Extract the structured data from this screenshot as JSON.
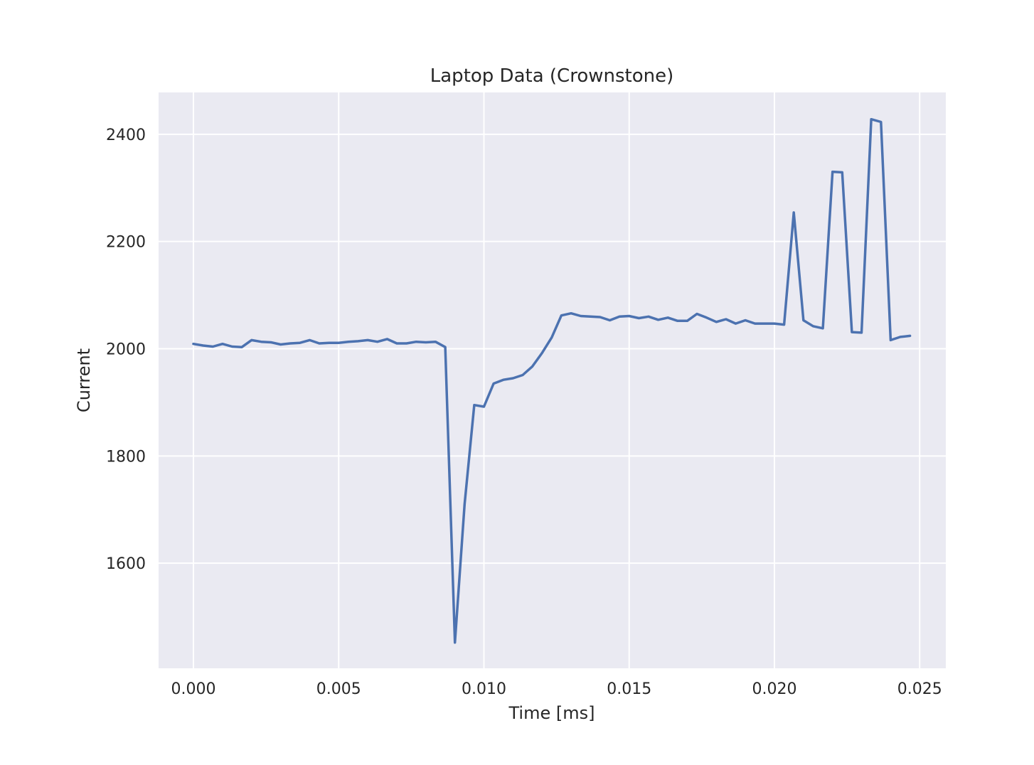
{
  "chart_data": {
    "type": "line",
    "title": "Laptop Data (Crownstone)",
    "xlabel": "Time [ms]",
    "ylabel": "Current",
    "xlim": [
      -0.0012,
      0.0259
    ],
    "ylim": [
      1404,
      2478
    ],
    "x_ticks": [
      {
        "value": 0.0,
        "label": "0.000"
      },
      {
        "value": 0.005,
        "label": "0.005"
      },
      {
        "value": 0.01,
        "label": "0.010"
      },
      {
        "value": 0.015,
        "label": "0.015"
      },
      {
        "value": 0.02,
        "label": "0.020"
      },
      {
        "value": 0.025,
        "label": "0.025"
      }
    ],
    "y_ticks": [
      {
        "value": 1600,
        "label": "1600"
      },
      {
        "value": 1800,
        "label": "1800"
      },
      {
        "value": 2000,
        "label": "2000"
      },
      {
        "value": 2200,
        "label": "2200"
      },
      {
        "value": 2400,
        "label": "2400"
      }
    ],
    "grid": true,
    "background_color": "#eaeaf2",
    "grid_color": "#ffffff",
    "series": [
      {
        "color": "#4c72b0",
        "x": [
          0.0,
          0.000333,
          0.000667,
          0.001,
          0.001333,
          0.001667,
          0.002,
          0.002333,
          0.002667,
          0.003,
          0.003333,
          0.003667,
          0.004,
          0.004333,
          0.004667,
          0.005,
          0.005333,
          0.005667,
          0.006,
          0.006333,
          0.006667,
          0.007,
          0.007333,
          0.007667,
          0.008,
          0.008333,
          0.008667,
          0.009,
          0.009333,
          0.009667,
          0.01,
          0.010333,
          0.010667,
          0.011,
          0.011333,
          0.011667,
          0.012,
          0.012333,
          0.012667,
          0.013,
          0.013333,
          0.013667,
          0.014,
          0.014333,
          0.014667,
          0.015,
          0.015333,
          0.015667,
          0.016,
          0.016333,
          0.016667,
          0.017,
          0.017333,
          0.017667,
          0.018,
          0.018333,
          0.018667,
          0.019,
          0.019333,
          0.019667,
          0.02,
          0.020333,
          0.020667,
          0.021,
          0.021333,
          0.021667,
          0.022,
          0.022333,
          0.022667,
          0.023,
          0.023333,
          0.023667,
          0.024,
          0.024333,
          0.024667
        ],
        "y": [
          2009,
          2006,
          2004,
          2009,
          2004,
          2003,
          2016,
          2013,
          2012,
          2008,
          2010,
          2011,
          2016,
          2010,
          2011,
          2011,
          2013,
          2014,
          2016,
          2013,
          2018,
          2010,
          2010,
          2013,
          2012,
          2013,
          2003,
          1452,
          1710,
          1895,
          1892,
          1935,
          1942,
          1945,
          1951,
          1967,
          1992,
          2021,
          2062,
          2066,
          2061,
          2060,
          2059,
          2053,
          2060,
          2061,
          2057,
          2060,
          2054,
          2058,
          2052,
          2052,
          2065,
          2058,
          2050,
          2055,
          2047,
          2053,
          2047,
          2047,
          2047,
          2045,
          2254,
          2053,
          2042,
          2038,
          2330,
          2329,
          2031,
          2030,
          2428,
          2423,
          2016,
          2022,
          2024
        ]
      }
    ]
  }
}
